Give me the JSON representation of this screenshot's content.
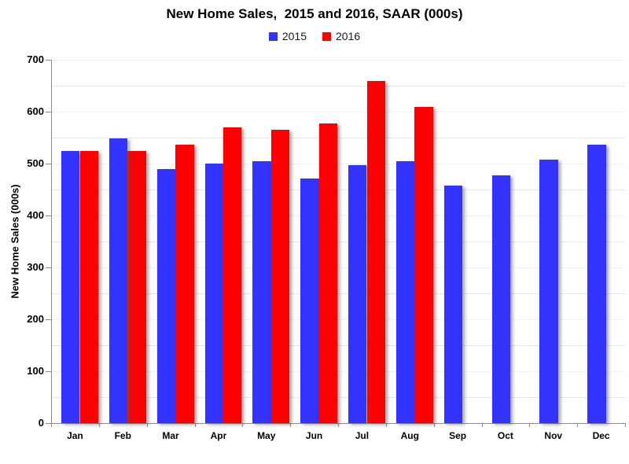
{
  "chart_data": {
    "type": "bar",
    "title": "New Home Sales,  2015 and 2016, SAAR (000s)",
    "xlabel": "",
    "ylabel": "New Home Sales (000s)",
    "categories": [
      "Jan",
      "Feb",
      "Mar",
      "Apr",
      "May",
      "Jun",
      "Jul",
      "Aug",
      "Sep",
      "Oct",
      "Nov",
      "Dec"
    ],
    "series": [
      {
        "name": "2015",
        "color": "#3333ff",
        "values": [
          524,
          548,
          489,
          500,
          505,
          471,
          497,
          504,
          457,
          477,
          508,
          537
        ]
      },
      {
        "name": "2016",
        "color": "#ff0000",
        "values": [
          525,
          524,
          537,
          570,
          565,
          578,
          659,
          609,
          null,
          null,
          null,
          null
        ]
      }
    ],
    "ylim": [
      0,
      700
    ],
    "yticks": [
      0,
      100,
      200,
      300,
      400,
      500,
      600,
      700
    ],
    "ytick_minor_step": 50,
    "grid": "horizontal, major every 100 and minor every 50",
    "legend_position": "top-center",
    "bar_style": "grouped with drop shadow"
  }
}
